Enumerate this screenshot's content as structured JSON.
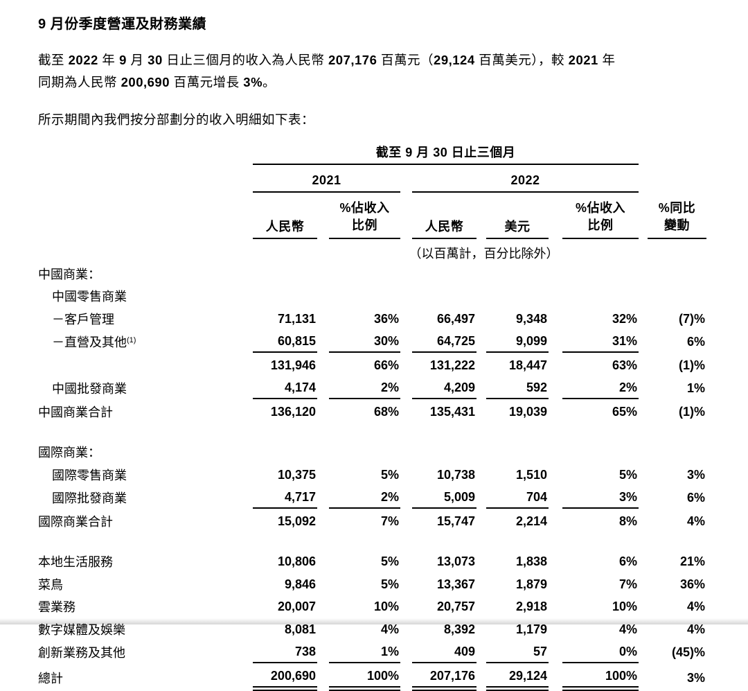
{
  "document": {
    "title": "9 月份季度營運及財務業績",
    "intro_line1_segments": [
      {
        "t": "截至 ",
        "b": false
      },
      {
        "t": "2022",
        "b": true
      },
      {
        "t": " 年 ",
        "b": false
      },
      {
        "t": "9",
        "b": true
      },
      {
        "t": " 月 ",
        "b": false
      },
      {
        "t": "30",
        "b": true
      },
      {
        "t": " 日止三個月的收入為人民幣 ",
        "b": false
      },
      {
        "t": "207,176",
        "b": true
      },
      {
        "t": " 百萬元（",
        "b": false
      },
      {
        "t": "29,124",
        "b": true
      },
      {
        "t": " 百萬美元），較 ",
        "b": false
      },
      {
        "t": "2021",
        "b": true
      },
      {
        "t": " 年",
        "b": false
      }
    ],
    "intro_line2_segments": [
      {
        "t": "同期為人民幣 ",
        "b": false
      },
      {
        "t": "200,690",
        "b": true
      },
      {
        "t": " 百萬元增長 ",
        "b": false
      },
      {
        "t": "3%",
        "b": true
      },
      {
        "t": "。",
        "b": false
      }
    ],
    "table_lead_in": "所示期間內我們按分部劃分的收入明細如下表："
  },
  "table": {
    "period_header": "截至 9 月 30 日止三個月",
    "year_left": "2021",
    "year_right": "2022",
    "columns": {
      "rmb_2021": "人民幣",
      "pct_2021_l1": "%佔收入",
      "pct_2021_l2": "比例",
      "rmb_2022": "人民幣",
      "usd_2022": "美元",
      "pct_2022_l1": "%佔收入",
      "pct_2022_l2": "比例",
      "yoy_l1": "%同比",
      "yoy_l2": "變動"
    },
    "unit_note": "（以百萬計，百分比除外）",
    "rows": [
      {
        "label": "中國商業：",
        "indent": 0,
        "values": null
      },
      {
        "label": "中國零售商業",
        "indent": 1,
        "values": null
      },
      {
        "label": "－客戶管理",
        "indent": 1,
        "values": [
          "71,131",
          "36%",
          "66,497",
          "9,348",
          "32%",
          "(7)%"
        ]
      },
      {
        "label": "－直營及其他",
        "sup": "(1)",
        "indent": 1,
        "values": [
          "60,815",
          "30%",
          "64,725",
          "9,099",
          "31%",
          "6%"
        ],
        "rule": true
      },
      {
        "label": "",
        "indent": 0,
        "values": [
          "131,946",
          "66%",
          "131,222",
          "18,447",
          "63%",
          "(1)%"
        ]
      },
      {
        "label": "中國批發商業",
        "indent": 1,
        "values": [
          "4,174",
          "2%",
          "4,209",
          "592",
          "2%",
          "1%"
        ],
        "rule": true
      },
      {
        "label": "中國商業合計",
        "indent": 0,
        "values": [
          "136,120",
          "68%",
          "135,431",
          "19,039",
          "65%",
          "(1)%"
        ]
      },
      {
        "spacer": true
      },
      {
        "label": "國際商業：",
        "indent": 0,
        "values": null
      },
      {
        "label": "國際零售商業",
        "indent": 1,
        "values": [
          "10,375",
          "5%",
          "10,738",
          "1,510",
          "5%",
          "3%"
        ]
      },
      {
        "label": "國際批發商業",
        "indent": 1,
        "values": [
          "4,717",
          "2%",
          "5,009",
          "704",
          "3%",
          "6%"
        ],
        "rule": true
      },
      {
        "label": "國際商業合計",
        "indent": 0,
        "values": [
          "15,092",
          "7%",
          "15,747",
          "2,214",
          "8%",
          "4%"
        ]
      },
      {
        "spacer": true
      },
      {
        "label": "本地生活服務",
        "indent": 0,
        "values": [
          "10,806",
          "5%",
          "13,073",
          "1,838",
          "6%",
          "21%"
        ]
      },
      {
        "label": "菜鳥",
        "indent": 0,
        "values": [
          "9,846",
          "5%",
          "13,367",
          "1,879",
          "7%",
          "36%"
        ]
      },
      {
        "label": "雲業務",
        "indent": 0,
        "values": [
          "20,007",
          "10%",
          "20,757",
          "2,918",
          "10%",
          "4%"
        ]
      },
      {
        "label": "數字媒體及娛樂",
        "indent": 0,
        "values": [
          "8,081",
          "4%",
          "8,392",
          "1,179",
          "4%",
          "4%"
        ]
      },
      {
        "label": "創新業務及其他",
        "indent": 0,
        "values": [
          "738",
          "1%",
          "409",
          "57",
          "0%",
          "(45)%"
        ],
        "rule": true
      },
      {
        "label": "總計",
        "indent": 0,
        "values": [
          "200,690",
          "100%",
          "207,176",
          "29,124",
          "100%",
          "3%"
        ],
        "double_rule": true
      }
    ]
  }
}
